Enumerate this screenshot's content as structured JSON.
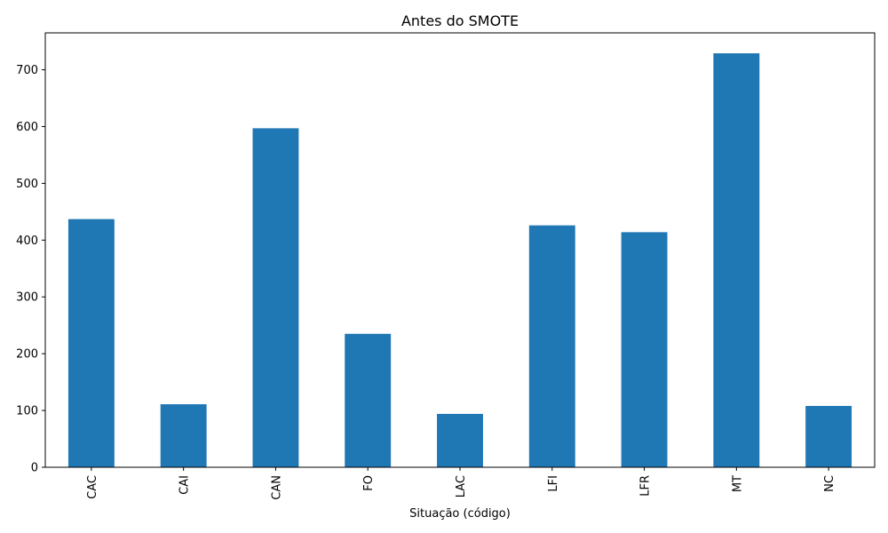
{
  "chart_data": {
    "type": "bar",
    "title": "Antes do SMOTE",
    "xlabel": "Situação (código)",
    "ylabel": "",
    "categories": [
      "CAC",
      "CAI",
      "CAN",
      "FO",
      "LAC",
      "LFI",
      "LFR",
      "MT",
      "NC"
    ],
    "values": [
      437,
      111,
      597,
      235,
      94,
      426,
      414,
      729,
      108
    ],
    "ylim": [
      0,
      765
    ],
    "yticks": [
      "0",
      "100",
      "200",
      "300",
      "400",
      "500",
      "600",
      "700"
    ],
    "grid": false,
    "bar_color": "#1f77b4"
  }
}
